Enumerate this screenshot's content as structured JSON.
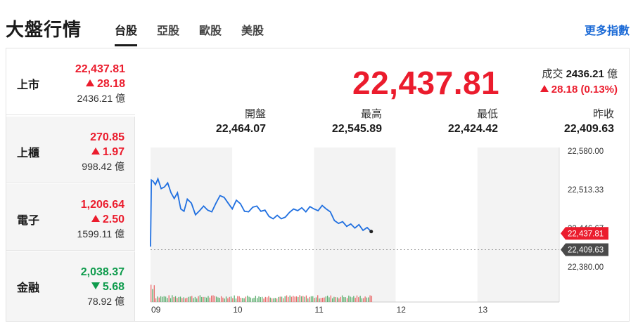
{
  "header": {
    "title": "大盤行情",
    "tabs": [
      {
        "label": "台股",
        "active": true
      },
      {
        "label": "亞股",
        "active": false
      },
      {
        "label": "歐股",
        "active": false
      },
      {
        "label": "美股",
        "active": false
      }
    ],
    "more_link": "更多指數"
  },
  "sidebar": {
    "items": [
      {
        "name": "上市",
        "price": "22,437.81",
        "change": "28.18",
        "direction": "up",
        "volume": "2436.21 億",
        "active": true
      },
      {
        "name": "上櫃",
        "price": "270.85",
        "change": "1.97",
        "direction": "up",
        "volume": "998.42 億",
        "active": false
      },
      {
        "name": "電子",
        "price": "1,206.64",
        "change": "2.50",
        "direction": "up",
        "volume": "1599.11 億",
        "active": false
      },
      {
        "name": "金融",
        "price": "2,038.37",
        "change": "5.68",
        "direction": "down",
        "volume": "78.92 億",
        "active": false
      }
    ]
  },
  "main": {
    "price": "22,437.81",
    "volume_label": "成交",
    "volume_value": "2436.21",
    "volume_unit": "億",
    "change": "28.18 (0.13%)",
    "stats": [
      {
        "label": "開盤",
        "value": "22,464.07"
      },
      {
        "label": "最高",
        "value": "22,545.89"
      },
      {
        "label": "最低",
        "value": "22,424.42"
      },
      {
        "label": "昨收",
        "value": "22,409.63"
      }
    ]
  },
  "colors": {
    "up": "#eb1c2d",
    "down": "#0e9b4c",
    "line": "#1f6fe0",
    "link": "#1b6ad6",
    "prev_close_tag": "#4a4a4a"
  },
  "chart_data": {
    "type": "line",
    "x_ticks": [
      "09",
      "10",
      "11",
      "12",
      "13"
    ],
    "y_ticks": [
      "22,580.00",
      "22,513.33",
      "22,446.67",
      "22,380.00"
    ],
    "ylim": [
      22380,
      22580
    ],
    "current_tag": "22,437.81",
    "prev_close_tag": "22,409.63",
    "prev_close": 22409.63,
    "current": 22437.81,
    "series": [
      {
        "x_hours": [
          9.0,
          9.01,
          9.03,
          9.06,
          9.09,
          9.13,
          9.17,
          9.21,
          9.25,
          9.29,
          9.33,
          9.37,
          9.41,
          9.45,
          9.5,
          9.55,
          9.6,
          9.65,
          9.7,
          9.75,
          9.8,
          9.85,
          9.9,
          9.95,
          10.0,
          10.05,
          10.1,
          10.15,
          10.2,
          10.25,
          10.3,
          10.35,
          10.4,
          10.45,
          10.5,
          10.55,
          10.6,
          10.65,
          10.7,
          10.75,
          10.8,
          10.85,
          10.9,
          10.95,
          11.0,
          11.05,
          11.1,
          11.15,
          11.2,
          11.25,
          11.3,
          11.35,
          11.4,
          11.45,
          11.5,
          11.55,
          11.6,
          11.65,
          11.7
        ],
        "values": [
          22415,
          22530,
          22528,
          22522,
          22532,
          22515,
          22518,
          22525,
          22508,
          22498,
          22508,
          22480,
          22476,
          22497,
          22490,
          22470,
          22477,
          22485,
          22478,
          22475,
          22490,
          22503,
          22500,
          22490,
          22480,
          22495,
          22489,
          22476,
          22475,
          22483,
          22485,
          22476,
          22478,
          22467,
          22463,
          22469,
          22463,
          22466,
          22474,
          22480,
          22477,
          22482,
          22475,
          22484,
          22480,
          22477,
          22486,
          22480,
          22475,
          22460,
          22455,
          22458,
          22450,
          22454,
          22447,
          22453,
          22443,
          22448,
          22441
        ]
      }
    ]
  }
}
